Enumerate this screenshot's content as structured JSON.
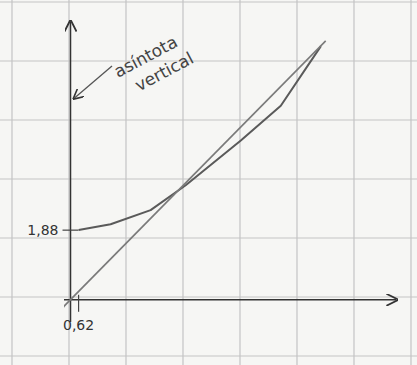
{
  "chart_data": {
    "type": "line",
    "xlim": [
      -0.5,
      25
    ],
    "ylim": [
      -0.6,
      7.5
    ],
    "xticks": [
      {
        "value": 0.62,
        "label": "0,62"
      }
    ],
    "yticks": [
      {
        "value": 1.88,
        "label": "1,88"
      }
    ],
    "series": [
      {
        "color": "#5a5a5a",
        "line_style": "solid",
        "x": [
          0.62,
          3.08,
          6.15,
          8.85,
          13.08,
          16.15,
          19.23
        ],
        "values": [
          1.88,
          2.04,
          2.42,
          3.09,
          4.3,
          5.24,
          6.85
        ]
      },
      {
        "color": "#7a7a7a",
        "line_style": "solid",
        "x": [
          -0.77,
          19.6
        ],
        "values": [
          -0.27,
          6.99
        ]
      }
    ],
    "annotations": [
      {
        "text": "asíntota vertical",
        "x": 0
      }
    ]
  }
}
